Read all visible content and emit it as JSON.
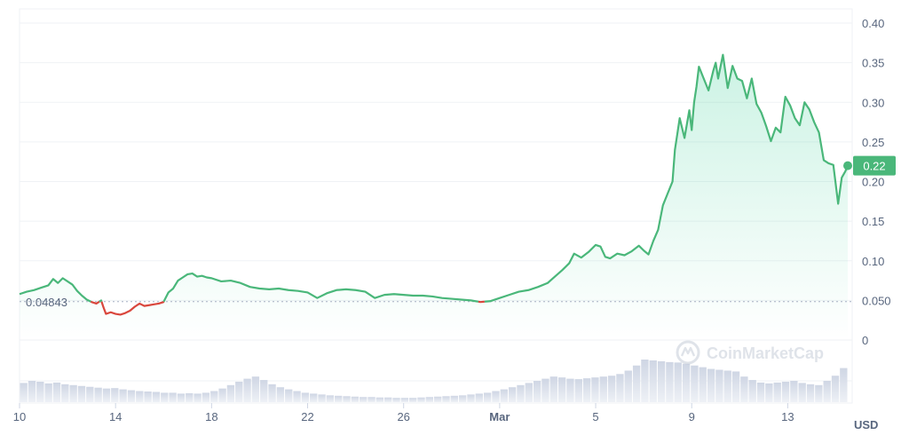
{
  "chart_data": {
    "type": "area",
    "currency_label": "USD",
    "watermark": "CoinMarketCap",
    "reference_value": 0.04843,
    "reference_label": "0.04843",
    "current_value": 0.22,
    "current_label": "0.22",
    "ylim": [
      0,
      0.4
    ],
    "y_ticks": [
      {
        "v": 0.4,
        "label": "0.40"
      },
      {
        "v": 0.35,
        "label": "0.35"
      },
      {
        "v": 0.3,
        "label": "0.30"
      },
      {
        "v": 0.25,
        "label": "0.25"
      },
      {
        "v": 0.2,
        "label": "0.20"
      },
      {
        "v": 0.15,
        "label": "0.15"
      },
      {
        "v": 0.1,
        "label": "0.10"
      },
      {
        "v": 0.05,
        "label": "0.050"
      },
      {
        "v": 0.0,
        "label": "0"
      }
    ],
    "xlim": [
      0,
      34.5
    ],
    "x_ticks": [
      {
        "d": 0,
        "label": "10",
        "bold": false
      },
      {
        "d": 4,
        "label": "14",
        "bold": false
      },
      {
        "d": 8,
        "label": "18",
        "bold": false
      },
      {
        "d": 12,
        "label": "22",
        "bold": false
      },
      {
        "d": 16,
        "label": "26",
        "bold": false
      },
      {
        "d": 20,
        "label": "Mar",
        "bold": true
      },
      {
        "d": 24,
        "label": "5",
        "bold": false
      },
      {
        "d": 28,
        "label": "9",
        "bold": false
      },
      {
        "d": 32,
        "label": "13",
        "bold": false
      }
    ],
    "series": [
      {
        "values": [
          [
            0.0,
            0.058
          ],
          [
            0.3,
            0.061
          ],
          [
            0.6,
            0.063
          ],
          [
            0.9,
            0.066
          ],
          [
            1.2,
            0.069
          ],
          [
            1.4,
            0.077
          ],
          [
            1.6,
            0.072
          ],
          [
            1.8,
            0.078
          ],
          [
            2.0,
            0.074
          ],
          [
            2.2,
            0.07
          ],
          [
            2.4,
            0.062
          ],
          [
            2.6,
            0.056
          ],
          [
            2.8,
            0.051
          ],
          [
            3.0,
            0.048
          ],
          [
            3.2,
            0.046
          ],
          [
            3.4,
            0.05
          ],
          [
            3.5,
            0.041
          ],
          [
            3.6,
            0.033
          ],
          [
            3.8,
            0.035
          ],
          [
            4.0,
            0.033
          ],
          [
            4.2,
            0.032
          ],
          [
            4.4,
            0.034
          ],
          [
            4.6,
            0.037
          ],
          [
            4.8,
            0.042
          ],
          [
            5.0,
            0.046
          ],
          [
            5.2,
            0.043
          ],
          [
            5.4,
            0.044
          ],
          [
            5.6,
            0.045
          ],
          [
            5.8,
            0.046
          ],
          [
            6.0,
            0.048
          ],
          [
            6.2,
            0.06
          ],
          [
            6.4,
            0.065
          ],
          [
            6.6,
            0.075
          ],
          [
            6.8,
            0.079
          ],
          [
            7.0,
            0.083
          ],
          [
            7.2,
            0.084
          ],
          [
            7.4,
            0.08
          ],
          [
            7.6,
            0.081
          ],
          [
            7.8,
            0.079
          ],
          [
            8.0,
            0.078
          ],
          [
            8.4,
            0.074
          ],
          [
            8.8,
            0.075
          ],
          [
            9.2,
            0.072
          ],
          [
            9.6,
            0.067
          ],
          [
            10.0,
            0.065
          ],
          [
            10.4,
            0.064
          ],
          [
            10.8,
            0.065
          ],
          [
            11.2,
            0.063
          ],
          [
            11.6,
            0.062
          ],
          [
            12.0,
            0.06
          ],
          [
            12.4,
            0.053
          ],
          [
            12.8,
            0.059
          ],
          [
            13.2,
            0.063
          ],
          [
            13.6,
            0.064
          ],
          [
            14.0,
            0.063
          ],
          [
            14.4,
            0.061
          ],
          [
            14.8,
            0.053
          ],
          [
            15.2,
            0.057
          ],
          [
            15.6,
            0.058
          ],
          [
            16.0,
            0.057
          ],
          [
            16.4,
            0.056
          ],
          [
            16.8,
            0.056
          ],
          [
            17.2,
            0.055
          ],
          [
            17.6,
            0.053
          ],
          [
            18.0,
            0.052
          ],
          [
            18.4,
            0.051
          ],
          [
            18.8,
            0.05
          ],
          [
            19.2,
            0.048
          ],
          [
            19.6,
            0.049
          ],
          [
            20.0,
            0.053
          ],
          [
            20.4,
            0.057
          ],
          [
            20.8,
            0.061
          ],
          [
            21.2,
            0.063
          ],
          [
            21.6,
            0.067
          ],
          [
            22.0,
            0.072
          ],
          [
            22.3,
            0.08
          ],
          [
            22.6,
            0.088
          ],
          [
            22.9,
            0.097
          ],
          [
            23.1,
            0.109
          ],
          [
            23.4,
            0.104
          ],
          [
            23.7,
            0.111
          ],
          [
            24.0,
            0.12
          ],
          [
            24.2,
            0.118
          ],
          [
            24.4,
            0.105
          ],
          [
            24.6,
            0.103
          ],
          [
            24.9,
            0.109
          ],
          [
            25.2,
            0.107
          ],
          [
            25.5,
            0.112
          ],
          [
            25.8,
            0.119
          ],
          [
            26.0,
            0.113
          ],
          [
            26.2,
            0.108
          ],
          [
            26.4,
            0.125
          ],
          [
            26.6,
            0.139
          ],
          [
            26.8,
            0.17
          ],
          [
            27.0,
            0.185
          ],
          [
            27.2,
            0.2
          ],
          [
            27.3,
            0.24
          ],
          [
            27.5,
            0.28
          ],
          [
            27.7,
            0.255
          ],
          [
            27.9,
            0.29
          ],
          [
            28.0,
            0.265
          ],
          [
            28.1,
            0.3
          ],
          [
            28.2,
            0.32
          ],
          [
            28.3,
            0.345
          ],
          [
            28.5,
            0.33
          ],
          [
            28.7,
            0.315
          ],
          [
            28.9,
            0.34
          ],
          [
            29.0,
            0.35
          ],
          [
            29.1,
            0.33
          ],
          [
            29.3,
            0.36
          ],
          [
            29.5,
            0.318
          ],
          [
            29.7,
            0.346
          ],
          [
            29.9,
            0.33
          ],
          [
            30.1,
            0.327
          ],
          [
            30.3,
            0.305
          ],
          [
            30.5,
            0.33
          ],
          [
            30.7,
            0.298
          ],
          [
            30.9,
            0.287
          ],
          [
            31.1,
            0.27
          ],
          [
            31.3,
            0.251
          ],
          [
            31.5,
            0.268
          ],
          [
            31.7,
            0.262
          ],
          [
            31.9,
            0.307
          ],
          [
            32.1,
            0.296
          ],
          [
            32.3,
            0.28
          ],
          [
            32.5,
            0.271
          ],
          [
            32.7,
            0.3
          ],
          [
            32.9,
            0.291
          ],
          [
            33.1,
            0.275
          ],
          [
            33.3,
            0.262
          ],
          [
            33.5,
            0.227
          ],
          [
            33.7,
            0.223
          ],
          [
            33.9,
            0.221
          ],
          [
            34.1,
            0.172
          ],
          [
            34.25,
            0.205
          ],
          [
            34.4,
            0.213
          ],
          [
            34.5,
            0.22
          ]
        ]
      }
    ],
    "volume": [
      0.45,
      0.5,
      0.48,
      0.44,
      0.46,
      0.42,
      0.4,
      0.38,
      0.36,
      0.34,
      0.32,
      0.33,
      0.3,
      0.28,
      0.26,
      0.25,
      0.24,
      0.22,
      0.22,
      0.2,
      0.21,
      0.2,
      0.22,
      0.26,
      0.32,
      0.4,
      0.48,
      0.55,
      0.6,
      0.52,
      0.42,
      0.35,
      0.3,
      0.26,
      0.22,
      0.2,
      0.18,
      0.16,
      0.15,
      0.14,
      0.13,
      0.12,
      0.12,
      0.11,
      0.11,
      0.1,
      0.1,
      0.1,
      0.11,
      0.12,
      0.13,
      0.14,
      0.15,
      0.16,
      0.18,
      0.2,
      0.22,
      0.26,
      0.3,
      0.35,
      0.4,
      0.45,
      0.5,
      0.55,
      0.6,
      0.58,
      0.55,
      0.54,
      0.56,
      0.58,
      0.6,
      0.62,
      0.66,
      0.74,
      0.86,
      1.0,
      0.98,
      0.96,
      0.94,
      0.93,
      0.9,
      0.86,
      0.82,
      0.78,
      0.76,
      0.74,
      0.72,
      0.6,
      0.52,
      0.46,
      0.44,
      0.46,
      0.48,
      0.5,
      0.45,
      0.42,
      0.4,
      0.5,
      0.62,
      0.8
    ]
  }
}
